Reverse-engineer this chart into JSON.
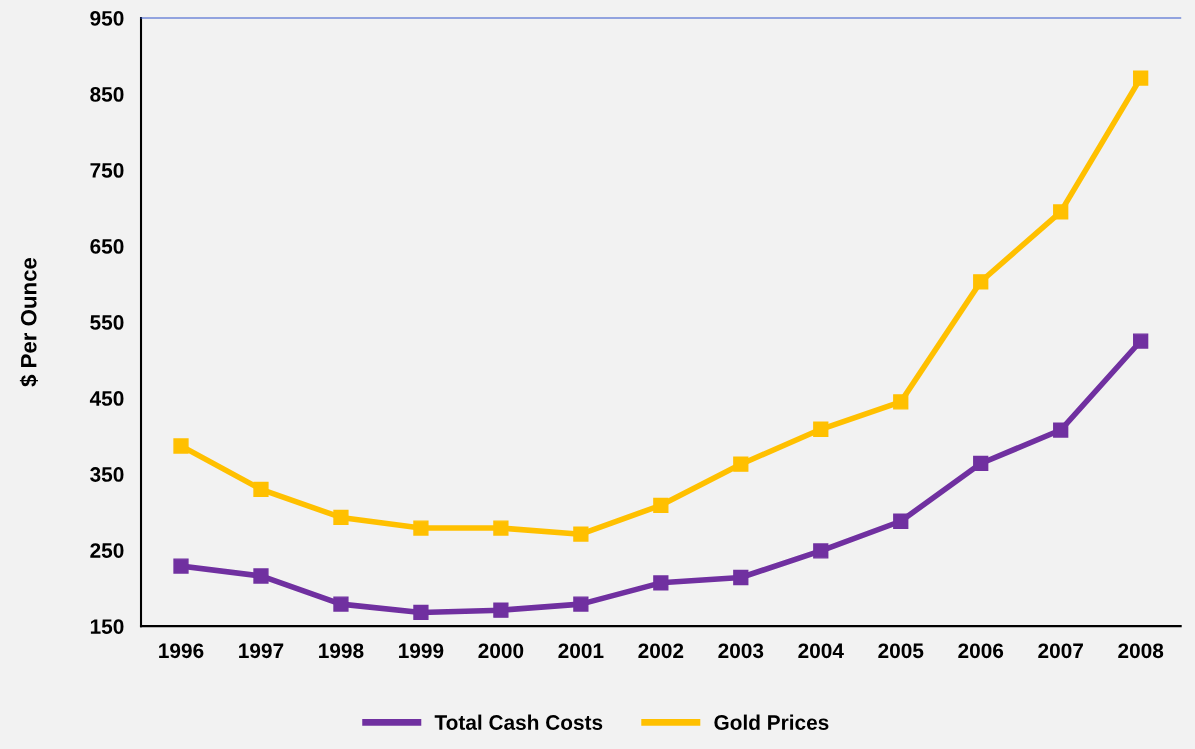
{
  "chart_data": {
    "type": "line",
    "ylabel": "$ Per Ounce",
    "categories": [
      "1996",
      "1997",
      "1998",
      "1999",
      "2000",
      "2001",
      "2002",
      "2003",
      "2004",
      "2005",
      "2006",
      "2007",
      "2008"
    ],
    "series": [
      {
        "name": "Total Cash Costs",
        "color": "#7030a0",
        "values": [
          229,
          216,
          179,
          168,
          171,
          179,
          207,
          214,
          249,
          288,
          364,
          408,
          525
        ]
      },
      {
        "name": "Gold Prices",
        "color": "#ffc000",
        "values": [
          387,
          330,
          293,
          279,
          279,
          271,
          309,
          363,
          409,
          445,
          603,
          695,
          871
        ]
      }
    ],
    "ylim": [
      150,
      950
    ],
    "yticks": [
      150,
      250,
      350,
      450,
      550,
      650,
      750,
      850,
      950
    ],
    "grid": false,
    "legend": "bottom",
    "marker": "square",
    "line_style": "solid"
  }
}
